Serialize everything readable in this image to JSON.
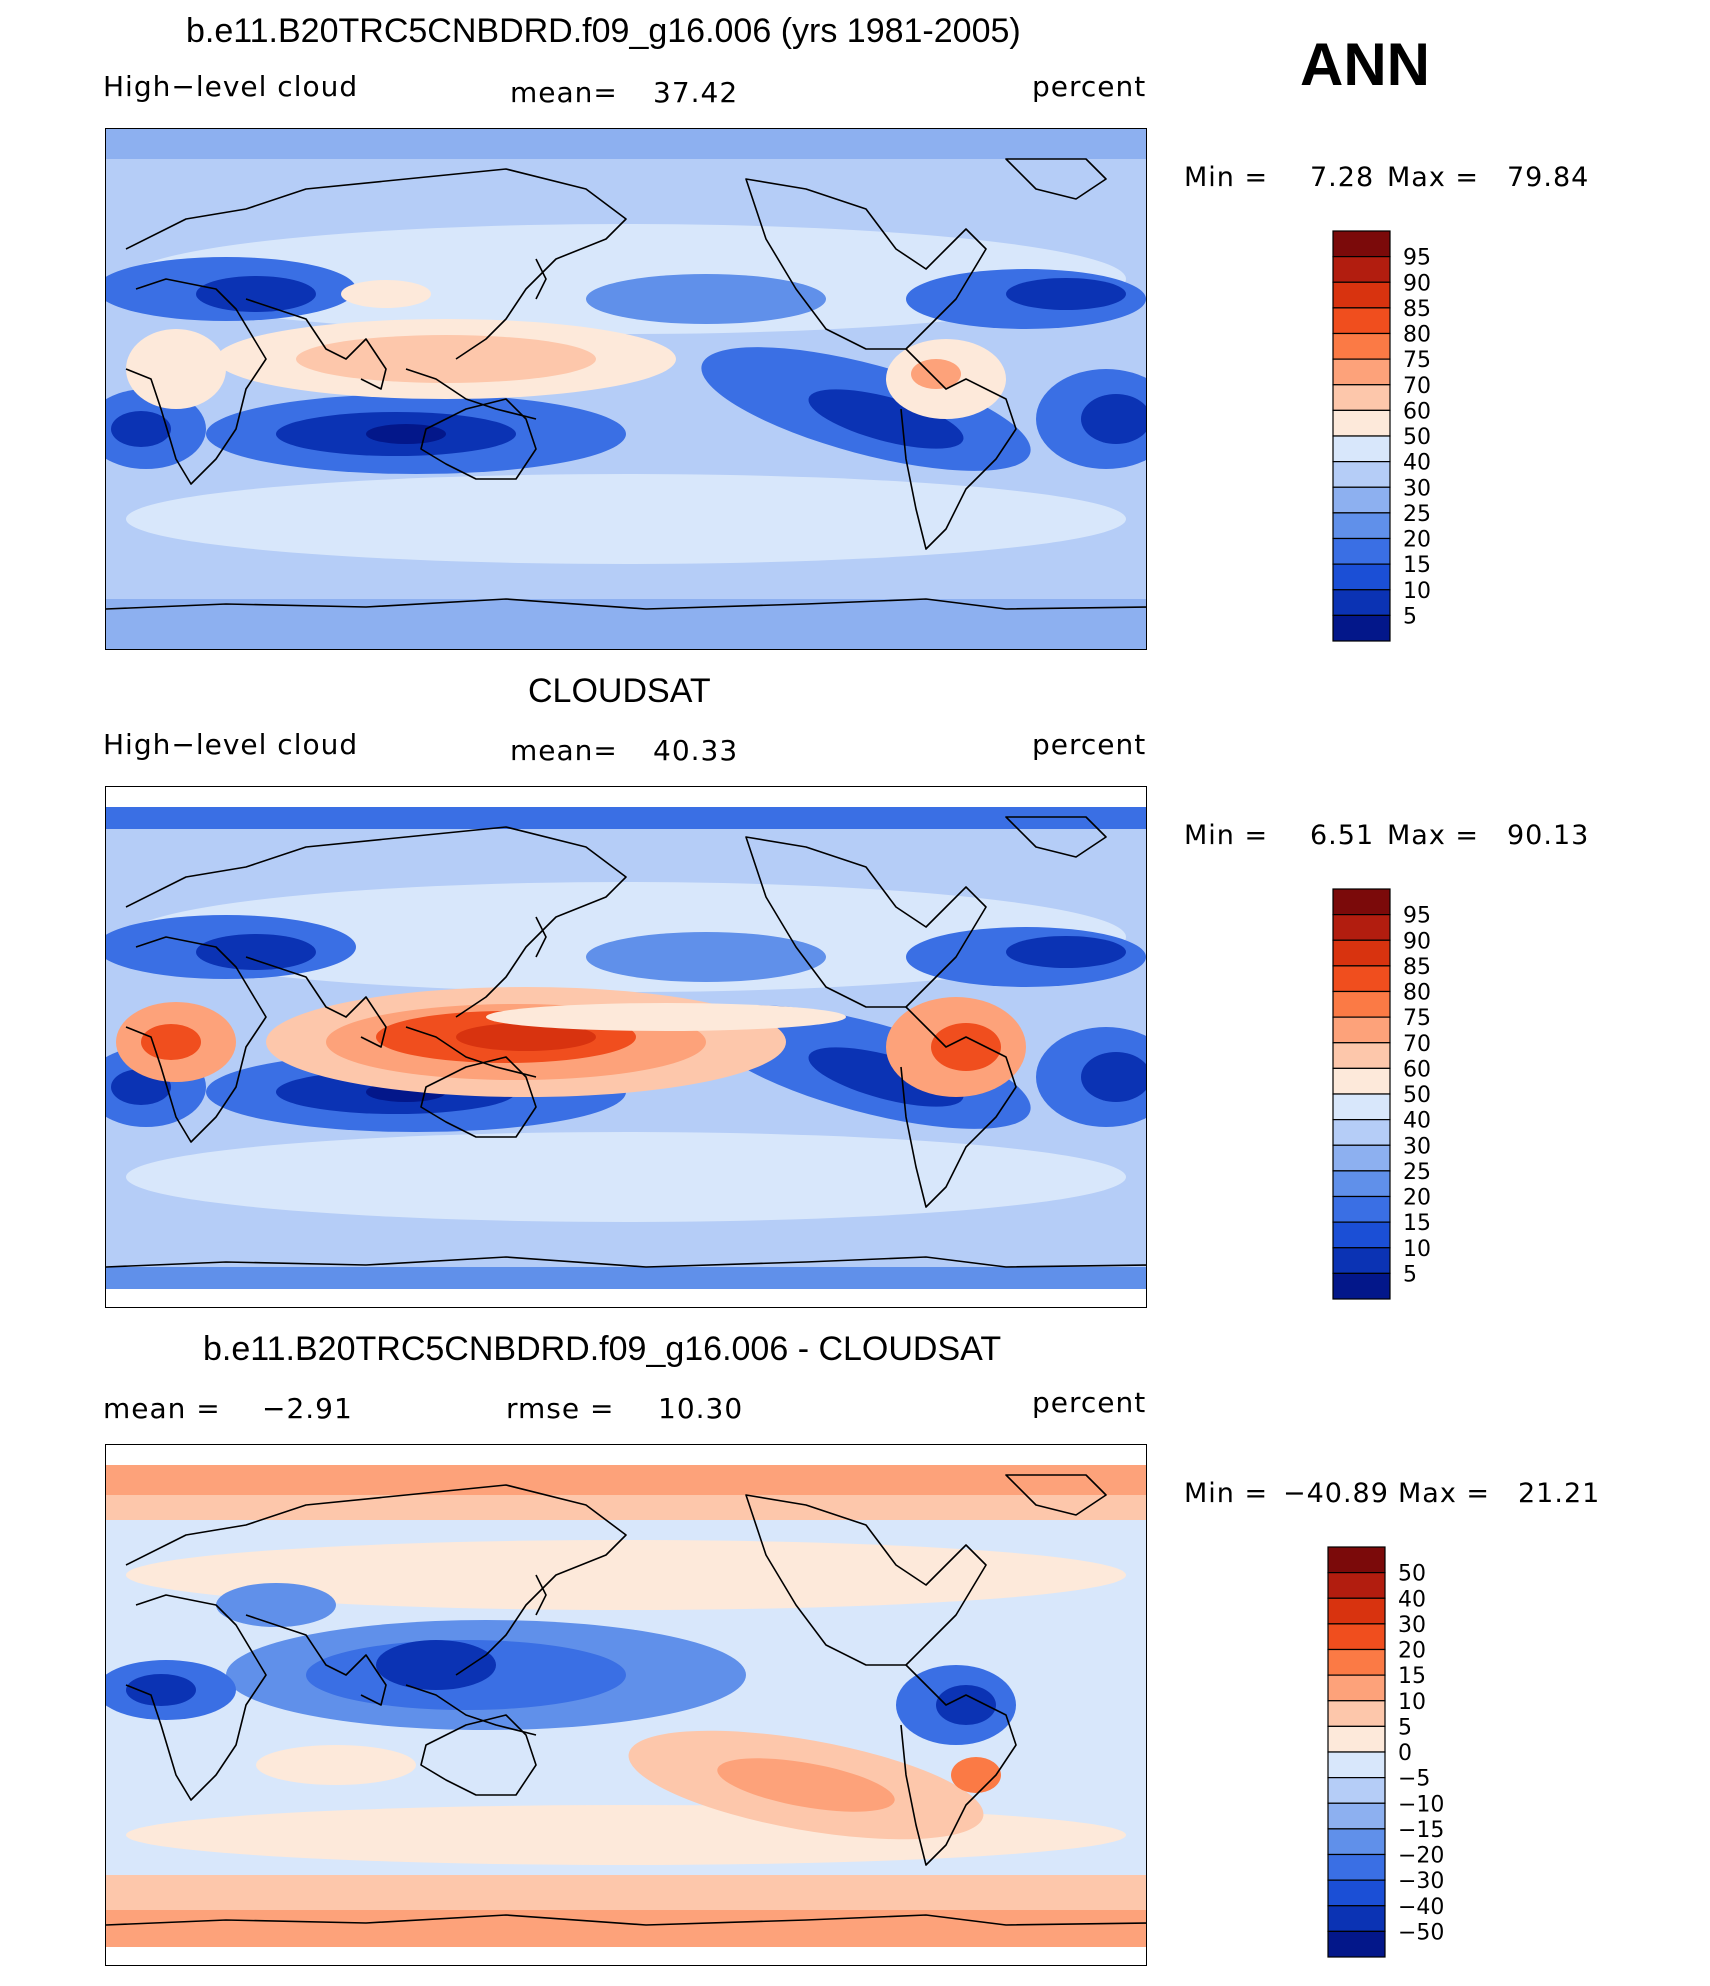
{
  "season_label": "ANN",
  "units": "percent",
  "panels": [
    {
      "id": "model",
      "title": "b.e11.B20TRC5CNBDRD.f09_g16.006 (yrs 1981-2005)",
      "left_label": "High−level cloud",
      "mean_label": "mean=",
      "mean_value": "37.42",
      "units": "percent",
      "min_label": "Min =",
      "min_value": "7.28",
      "max_label": "Max =",
      "max_value": "79.84",
      "colorbar_labels": [
        "95",
        "90",
        "85",
        "80",
        "75",
        "70",
        "60",
        "50",
        "40",
        "30",
        "25",
        "20",
        "15",
        "10",
        "5"
      ],
      "colorbar_colors": [
        "#7b0a0a",
        "#b21d0f",
        "#d8330f",
        "#f04e1e",
        "#fb7a45",
        "#fda27a",
        "#fdc7ab",
        "#fde9da",
        "#d8e7fb",
        "#b5cdf7",
        "#8db0f0",
        "#6090ea",
        "#3a6fe4",
        "#1b4fd6",
        "#0b33b4",
        "#03178a"
      ],
      "caption": ""
    },
    {
      "id": "obs",
      "title": "CLOUDSAT",
      "left_label": "High−level cloud",
      "mean_label": "mean=",
      "mean_value": "40.33",
      "units": "percent",
      "min_label": "Min =",
      "min_value": "6.51",
      "max_label": "Max =",
      "max_value": "90.13",
      "colorbar_labels": [
        "95",
        "90",
        "85",
        "80",
        "75",
        "70",
        "60",
        "50",
        "40",
        "30",
        "25",
        "20",
        "15",
        "10",
        "5"
      ],
      "colorbar_colors": [
        "#7b0a0a",
        "#b21d0f",
        "#d8330f",
        "#f04e1e",
        "#fb7a45",
        "#fda27a",
        "#fdc7ab",
        "#fde9da",
        "#d8e7fb",
        "#b5cdf7",
        "#8db0f0",
        "#6090ea",
        "#3a6fe4",
        "#1b4fd6",
        "#0b33b4",
        "#03178a"
      ]
    },
    {
      "id": "diff",
      "title": "b.e11.B20TRC5CNBDRD.f09_g16.006 - CLOUDSAT",
      "left_label": "mean =",
      "left_value": "−2.91",
      "rmse_label": "rmse =",
      "rmse_value": "10.30",
      "units": "percent",
      "min_label": "Min =",
      "min_value": "−40.89",
      "max_label": "Max =",
      "max_value": "21.21",
      "colorbar_labels": [
        "50",
        "40",
        "30",
        "20",
        "15",
        "10",
        "5",
        "0",
        "−5",
        "−10",
        "−15",
        "−20",
        "−30",
        "−40",
        "−50"
      ],
      "colorbar_colors": [
        "#7b0a0a",
        "#b21d0f",
        "#d8330f",
        "#f04e1e",
        "#fb7a45",
        "#fda27a",
        "#fdc7ab",
        "#fde9da",
        "#d8e7fb",
        "#b5cdf7",
        "#8db0f0",
        "#6090ea",
        "#3a6fe4",
        "#1b4fd6",
        "#0b33b4",
        "#03178a"
      ]
    }
  ]
}
